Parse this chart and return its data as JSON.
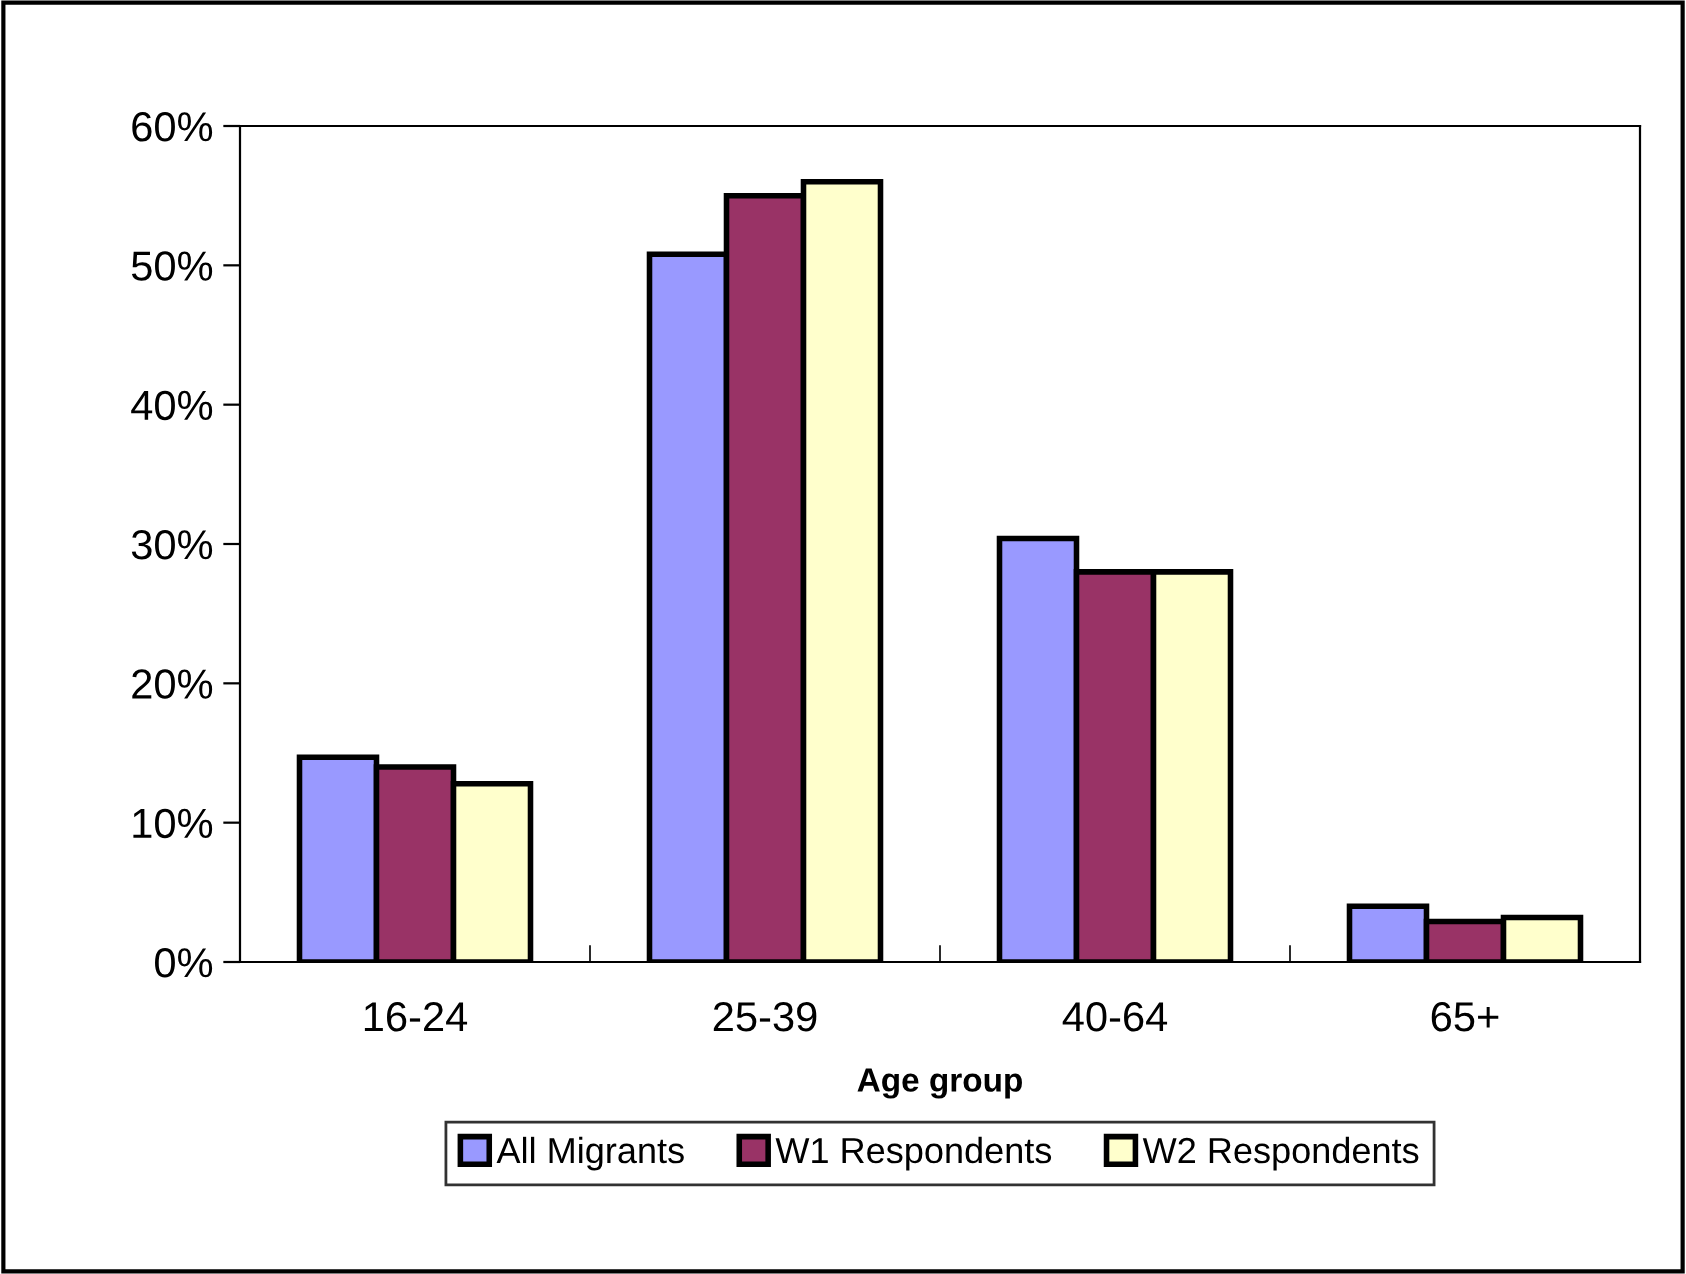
{
  "chart_data": {
    "type": "bar",
    "xlabel": "Age group",
    "categories": [
      "16-24",
      "25-39",
      "40-64",
      "65+"
    ],
    "series": [
      {
        "name": "All Migrants",
        "color": "#9999ff",
        "values": [
          14.7,
          50.8,
          30.4,
          4.0
        ]
      },
      {
        "name": "W1 Respondents",
        "color": "#993366",
        "values": [
          14.0,
          55.0,
          28.0,
          2.9
        ]
      },
      {
        "name": "W2 Respondents",
        "color": "#ffffcc",
        "values": [
          12.8,
          56.0,
          28.0,
          3.2
        ]
      }
    ],
    "ylim": [
      0,
      60
    ],
    "yticks": [
      {
        "value": 0,
        "label": "0%"
      },
      {
        "value": 10,
        "label": "10%"
      },
      {
        "value": 20,
        "label": "20%"
      },
      {
        "value": 30,
        "label": "30%"
      },
      {
        "value": 40,
        "label": "40%"
      },
      {
        "value": 50,
        "label": "50%"
      },
      {
        "value": 60,
        "label": "60%"
      }
    ],
    "grid": false,
    "legend": "bottom"
  }
}
